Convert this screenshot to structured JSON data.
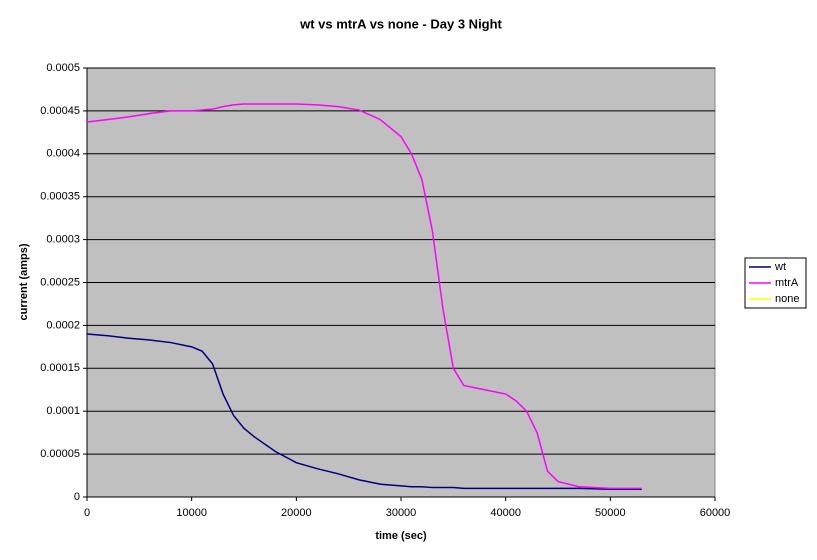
{
  "chart_data": {
    "type": "line",
    "title": "wt vs mtrA vs none - Day 3 Night",
    "x_label": "time (sec)",
    "y_label": "current (amps)",
    "x": [
      0,
      2000,
      4000,
      6000,
      8000,
      10000,
      11000,
      12000,
      13000,
      14000,
      15000,
      16000,
      18000,
      20000,
      22000,
      24000,
      26000,
      28000,
      30000,
      31000,
      32000,
      33000,
      34000,
      35000,
      36000,
      38000,
      40000,
      41000,
      42000,
      43000,
      44000,
      45000,
      47000,
      50000,
      53000
    ],
    "series": [
      {
        "name": "wt",
        "color": "#000080",
        "values": [
          0.00019,
          0.000188,
          0.000185,
          0.000183,
          0.00018,
          0.000175,
          0.00017,
          0.000155,
          0.00012,
          9.5e-05,
          8e-05,
          7e-05,
          5.3e-05,
          4e-05,
          3.3e-05,
          2.7e-05,
          2e-05,
          1.5e-05,
          1.3e-05,
          1.2e-05,
          1.2e-05,
          1.1e-05,
          1.1e-05,
          1.1e-05,
          1e-05,
          1e-05,
          1e-05,
          1e-05,
          1e-05,
          1e-05,
          1e-05,
          1e-05,
          1e-05,
          9e-06,
          9e-06
        ]
      },
      {
        "name": "mtrA",
        "color": "#FF00FF",
        "values": [
          0.000437,
          0.00044,
          0.000443,
          0.000447,
          0.00045,
          0.00045,
          0.000451,
          0.000452,
          0.000455,
          0.000457,
          0.000458,
          0.000458,
          0.000458,
          0.000458,
          0.000457,
          0.000455,
          0.000451,
          0.00044,
          0.00042,
          0.0004,
          0.00037,
          0.00031,
          0.00022,
          0.00015,
          0.00013,
          0.000125,
          0.00012,
          0.000112,
          0.0001,
          7.5e-05,
          3e-05,
          1.8e-05,
          1.2e-05,
          1e-05,
          1e-05
        ]
      },
      {
        "name": "none",
        "color": "#FFFF00",
        "values": [
          null,
          null,
          null,
          null,
          null,
          null,
          null,
          null,
          null,
          null,
          null,
          null,
          null,
          null,
          null,
          null,
          null,
          null,
          null,
          null,
          null,
          null,
          null,
          null,
          null,
          null,
          null,
          null,
          null,
          null,
          null,
          null,
          null,
          null,
          null
        ]
      }
    ],
    "xlim": [
      0,
      60000
    ],
    "xticks": [
      0,
      10000,
      20000,
      30000,
      40000,
      50000,
      60000
    ],
    "ylim": [
      0,
      0.0005
    ],
    "yticks": [
      0,
      5e-05,
      0.0001,
      0.00015,
      0.0002,
      0.00025,
      0.0003,
      0.00035,
      0.0004,
      0.00045,
      0.0005
    ],
    "grid": true,
    "legend": "right"
  }
}
